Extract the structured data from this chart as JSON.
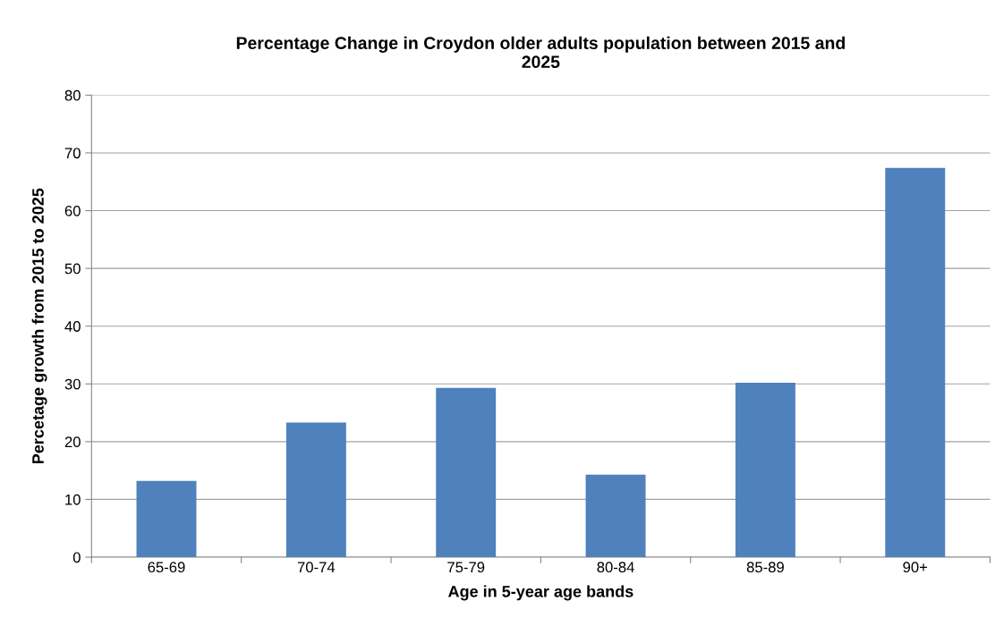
{
  "chart_data": {
    "type": "bar",
    "title": "Percentage Change in Croydon older adults population between 2015 and\n2025",
    "xlabel": "Age in 5-year age bands",
    "ylabel": "Percetage growth from 2015 to 2025",
    "categories": [
      "65-69",
      "70-74",
      "75-79",
      "80-84",
      "85-89",
      "90+"
    ],
    "values": [
      13.2,
      23.3,
      29.3,
      14.3,
      30.2,
      67.4
    ],
    "color": "#4f81bd",
    "ylim": [
      0,
      80
    ],
    "yticks": [
      0,
      10,
      20,
      30,
      40,
      50,
      60,
      70,
      80
    ],
    "grid": "y"
  }
}
